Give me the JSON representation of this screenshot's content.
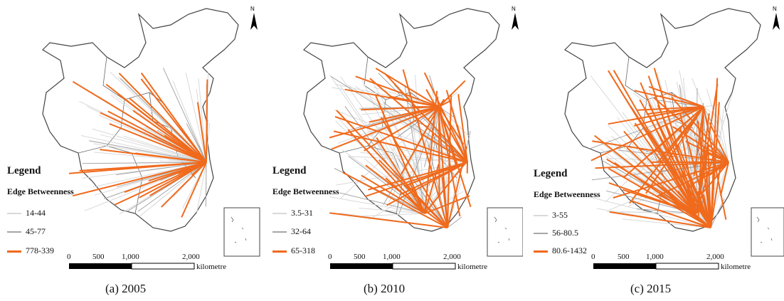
{
  "maps": [
    {
      "caption": "(a)  2005",
      "north_label": "N",
      "legend_title": "Legend",
      "legend_subtitle": "Edge Betweenness",
      "legend_items": [
        {
          "label": "14-44",
          "color": "#d9d9d9"
        },
        {
          "label": "45-77",
          "color": "#a6a6a6"
        },
        {
          "label": "778-339",
          "color": "#f06a1c"
        }
      ],
      "scale_ticks": [
        "0",
        "500",
        "1,000",
        "2,000"
      ],
      "scale_unit": "kilometre"
    },
    {
      "caption": "(b)  2010",
      "north_label": "N",
      "legend_title": "Legend",
      "legend_subtitle": "Edge Betweenness",
      "legend_items": [
        {
          "label": "3.5-31",
          "color": "#d9d9d9"
        },
        {
          "label": "32-64",
          "color": "#a6a6a6"
        },
        {
          "label": "65-318",
          "color": "#f06a1c"
        }
      ],
      "scale_ticks": [
        "0",
        "500",
        "1,000",
        "2,000"
      ],
      "scale_unit": "kilometre"
    },
    {
      "caption": "(c)  2015",
      "north_label": "N",
      "legend_title": "Legend",
      "legend_subtitle": "Edge Betweenness",
      "legend_items": [
        {
          "label": "3-55",
          "color": "#d9d9d9"
        },
        {
          "label": "56-80.5",
          "color": "#a6a6a6"
        },
        {
          "label": "80.6-1432",
          "color": "#f06a1c"
        }
      ],
      "scale_ticks": [
        "0",
        "500",
        "1,000",
        "2,000"
      ],
      "scale_unit": "kilometre"
    }
  ]
}
